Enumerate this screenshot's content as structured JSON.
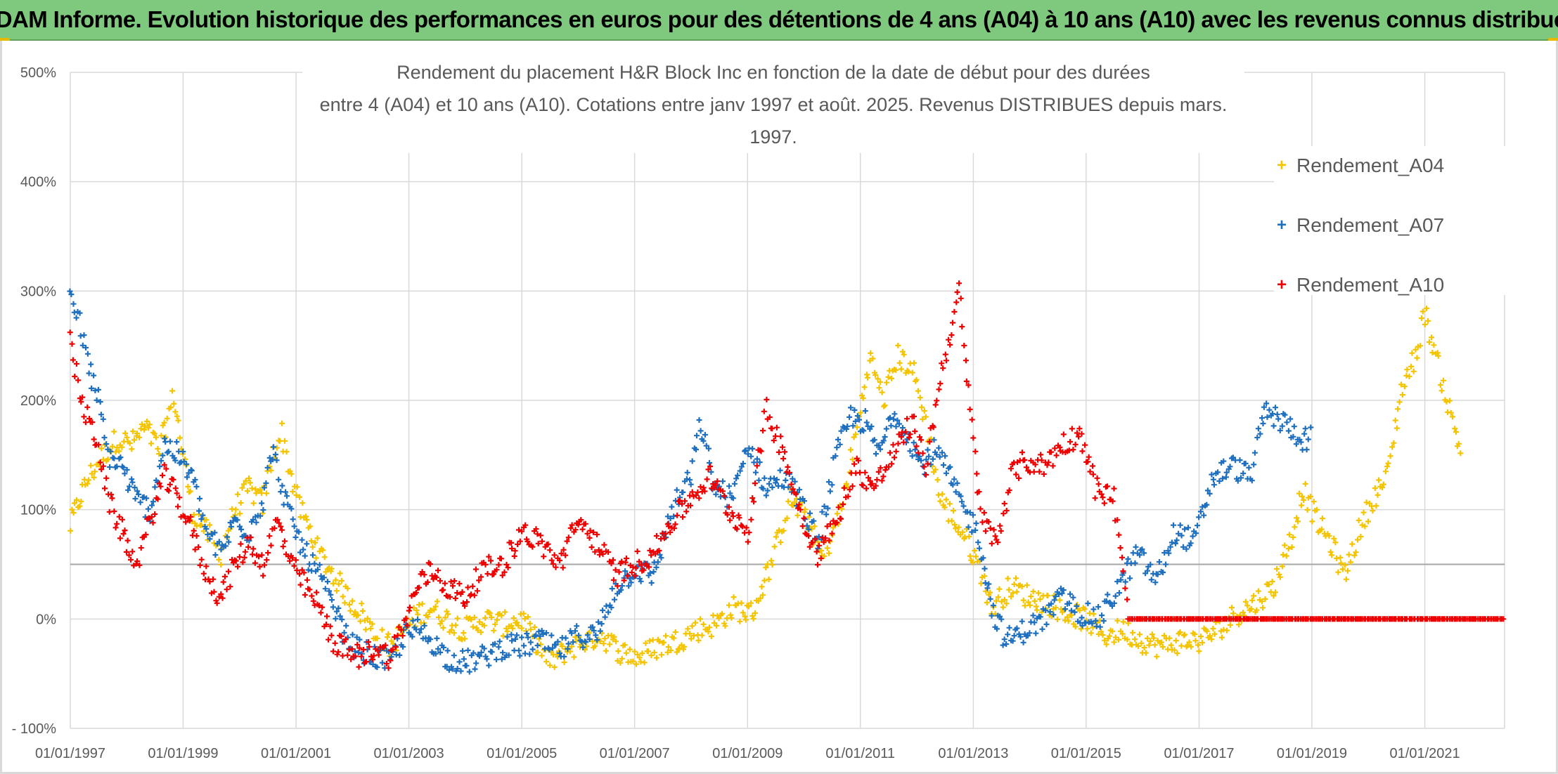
{
  "banner": {
    "title": "ADAM Informe. Evolution historique des performances en euros pour des détentions de 4 ans (A04) à 10 ans (A10) avec les revenus connus distribués"
  },
  "colors": {
    "banner_bg": "#7fc97f",
    "A04": "#f5c400",
    "A07": "#1f6fbf",
    "A10": "#ee0000",
    "grid": "#d9d9d9",
    "reference_line": "#a6a6a6"
  },
  "chart_data": {
    "type": "scatter",
    "title_line1": "Rendement du placement H&R Block Inc en fonction de la date de début pour des durées",
    "title_line2": "entre 4 (A04) et 10 ans (A10). Cotations entre janv 1997 et août. 2025. Revenus DISTRIBUES depuis mars. 1997.",
    "xlabel": "",
    "ylabel": "",
    "xlim": [
      "1997-01-01",
      "2022-06-01"
    ],
    "ylim": [
      -100,
      500
    ],
    "y_unit": "%",
    "y_ticks": [
      "500%",
      "400%",
      "300%",
      "200%",
      "100%",
      "0%",
      "- 100%"
    ],
    "y_tick_values": [
      500,
      400,
      300,
      200,
      100,
      0,
      -100
    ],
    "x_ticks": [
      "01/01/1997",
      "01/01/1999",
      "01/01/2001",
      "01/01/2003",
      "01/01/2005",
      "01/01/2007",
      "01/01/2009",
      "01/01/2011",
      "01/01/2013",
      "01/01/2015",
      "01/01/2017",
      "01/01/2019",
      "01/01/2021"
    ],
    "x_tick_dates": [
      "1997-01-01",
      "1999-01-01",
      "2001-01-01",
      "2003-01-01",
      "2005-01-01",
      "2007-01-01",
      "2009-01-01",
      "2011-01-01",
      "2013-01-01",
      "2015-01-01",
      "2017-01-01",
      "2019-01-01",
      "2021-01-01"
    ],
    "reference_line_y": 50,
    "grid": true,
    "legend_position": "right",
    "marker": "+",
    "series": [
      {
        "name": "Rendement_A04",
        "color": "#f5c400",
        "points": [
          [
            "1997-01-01",
            85
          ],
          [
            "1997-03-01",
            110
          ],
          [
            "1997-05-01",
            130
          ],
          [
            "1997-08-01",
            150
          ],
          [
            "1997-11-01",
            165
          ],
          [
            "1998-02-01",
            160
          ],
          [
            "1998-05-01",
            175
          ],
          [
            "1998-08-01",
            155
          ],
          [
            "1998-11-01",
            205
          ],
          [
            "1999-01-01",
            150
          ],
          [
            "1999-03-01",
            100
          ],
          [
            "1999-06-01",
            80
          ],
          [
            "1999-09-01",
            60
          ],
          [
            "1999-12-01",
            100
          ],
          [
            "2000-03-01",
            120
          ],
          [
            "2000-06-01",
            105
          ],
          [
            "2000-08-01",
            150
          ],
          [
            "2000-10-01",
            170
          ],
          [
            "2000-12-01",
            130
          ],
          [
            "2001-02-01",
            100
          ],
          [
            "2001-04-01",
            80
          ],
          [
            "2001-06-01",
            60
          ],
          [
            "2001-09-01",
            40
          ],
          [
            "2001-12-01",
            20
          ],
          [
            "2002-03-01",
            5
          ],
          [
            "2002-06-01",
            -15
          ],
          [
            "2002-09-01",
            -25
          ],
          [
            "2002-12-01",
            -10
          ],
          [
            "2003-03-01",
            5
          ],
          [
            "2003-06-01",
            10
          ],
          [
            "2003-09-01",
            0
          ],
          [
            "2004-01-01",
            -10
          ],
          [
            "2004-05-01",
            0
          ],
          [
            "2004-09-01",
            -5
          ],
          [
            "2005-01-01",
            0
          ],
          [
            "2005-04-01",
            -20
          ],
          [
            "2005-07-01",
            -40
          ],
          [
            "2005-10-01",
            -30
          ],
          [
            "2006-02-01",
            -20
          ],
          [
            "2006-06-01",
            -15
          ],
          [
            "2006-10-01",
            -30
          ],
          [
            "2007-02-01",
            -35
          ],
          [
            "2007-06-01",
            -25
          ],
          [
            "2007-10-01",
            -20
          ],
          [
            "2008-02-01",
            -10
          ],
          [
            "2008-06-01",
            -5
          ],
          [
            "2008-10-01",
            10
          ],
          [
            "2009-02-01",
            5
          ],
          [
            "2009-06-01",
            50
          ],
          [
            "2009-10-01",
            110
          ],
          [
            "2010-02-01",
            90
          ],
          [
            "2010-05-01",
            55
          ],
          [
            "2010-09-01",
            100
          ],
          [
            "2011-01-01",
            190
          ],
          [
            "2011-03-01",
            240
          ],
          [
            "2011-06-01",
            200
          ],
          [
            "2011-09-01",
            240
          ],
          [
            "2011-12-01",
            230
          ],
          [
            "2012-03-01",
            180
          ],
          [
            "2012-06-01",
            110
          ],
          [
            "2012-09-01",
            90
          ],
          [
            "2012-12-01",
            70
          ],
          [
            "2013-03-01",
            40
          ],
          [
            "2013-05-01",
            10
          ],
          [
            "2013-09-01",
            30
          ],
          [
            "2014-01-01",
            20
          ],
          [
            "2014-05-01",
            15
          ],
          [
            "2014-09-01",
            5
          ],
          [
            "2015-01-01",
            0
          ],
          [
            "2015-05-01",
            -15
          ],
          [
            "2015-09-01",
            -10
          ],
          [
            "2016-01-01",
            -20
          ],
          [
            "2016-05-01",
            -25
          ],
          [
            "2016-09-01",
            -20
          ],
          [
            "2017-01-01",
            -20
          ],
          [
            "2017-05-01",
            -10
          ],
          [
            "2017-09-01",
            5
          ],
          [
            "2018-01-01",
            15
          ],
          [
            "2018-05-01",
            30
          ],
          [
            "2018-09-01",
            80
          ],
          [
            "2018-11-01",
            120
          ],
          [
            "2019-02-01",
            90
          ],
          [
            "2019-05-01",
            70
          ],
          [
            "2019-08-01",
            40
          ],
          [
            "2019-11-01",
            80
          ],
          [
            "2020-02-01",
            110
          ],
          [
            "2020-05-01",
            130
          ],
          [
            "2020-08-01",
            210
          ],
          [
            "2020-11-01",
            240
          ],
          [
            "2021-01-01",
            280
          ],
          [
            "2021-04-01",
            230
          ],
          [
            "2021-07-01",
            180
          ],
          [
            "2021-09-01",
            150
          ]
        ]
      },
      {
        "name": "Rendement_A07",
        "color": "#1f6fbf",
        "points": [
          [
            "1997-01-01",
            300
          ],
          [
            "1997-03-01",
            270
          ],
          [
            "1997-05-01",
            230
          ],
          [
            "1997-07-01",
            200
          ],
          [
            "1997-09-01",
            150
          ],
          [
            "1997-12-01",
            140
          ],
          [
            "1998-03-01",
            110
          ],
          [
            "1998-06-01",
            100
          ],
          [
            "1998-09-01",
            160
          ],
          [
            "1998-12-01",
            150
          ],
          [
            "1999-03-01",
            130
          ],
          [
            "1999-06-01",
            80
          ],
          [
            "1999-09-01",
            60
          ],
          [
            "1999-12-01",
            90
          ],
          [
            "2000-03-01",
            80
          ],
          [
            "2000-06-01",
            110
          ],
          [
            "2000-08-01",
            155
          ],
          [
            "2000-10-01",
            120
          ],
          [
            "2000-12-01",
            90
          ],
          [
            "2001-03-01",
            60
          ],
          [
            "2001-06-01",
            40
          ],
          [
            "2001-09-01",
            10
          ],
          [
            "2001-12-01",
            -20
          ],
          [
            "2002-03-01",
            -30
          ],
          [
            "2002-06-01",
            -35
          ],
          [
            "2002-09-01",
            -40
          ],
          [
            "2002-12-01",
            -15
          ],
          [
            "2003-03-01",
            -10
          ],
          [
            "2003-06-01",
            -20
          ],
          [
            "2003-09-01",
            -35
          ],
          [
            "2004-01-01",
            -40
          ],
          [
            "2004-05-01",
            -35
          ],
          [
            "2004-09-01",
            -25
          ],
          [
            "2005-01-01",
            -25
          ],
          [
            "2005-05-01",
            -20
          ],
          [
            "2005-09-01",
            -30
          ],
          [
            "2006-01-01",
            -15
          ],
          [
            "2006-05-01",
            -15
          ],
          [
            "2006-09-01",
            30
          ],
          [
            "2007-01-01",
            45
          ],
          [
            "2007-05-01",
            40
          ],
          [
            "2007-09-01",
            100
          ],
          [
            "2008-01-01",
            130
          ],
          [
            "2008-03-01",
            180
          ],
          [
            "2008-06-01",
            120
          ],
          [
            "2008-10-01",
            110
          ],
          [
            "2009-01-01",
            160
          ],
          [
            "2009-05-01",
            120
          ],
          [
            "2009-09-01",
            130
          ],
          [
            "2009-12-01",
            110
          ],
          [
            "2010-04-01",
            70
          ],
          [
            "2010-08-01",
            150
          ],
          [
            "2010-11-01",
            185
          ],
          [
            "2011-02-01",
            180
          ],
          [
            "2011-05-01",
            150
          ],
          [
            "2011-08-01",
            190
          ],
          [
            "2011-11-01",
            170
          ],
          [
            "2012-02-01",
            140
          ],
          [
            "2012-05-01",
            155
          ],
          [
            "2012-08-01",
            130
          ],
          [
            "2012-11-01",
            100
          ],
          [
            "2013-02-01",
            80
          ],
          [
            "2013-05-01",
            10
          ],
          [
            "2013-08-01",
            -20
          ],
          [
            "2013-12-01",
            -10
          ],
          [
            "2014-04-01",
            0
          ],
          [
            "2014-08-01",
            20
          ],
          [
            "2014-12-01",
            5
          ],
          [
            "2015-04-01",
            0
          ],
          [
            "2015-08-01",
            30
          ],
          [
            "2015-12-01",
            60
          ],
          [
            "2016-04-01",
            35
          ],
          [
            "2016-08-01",
            80
          ],
          [
            "2016-12-01",
            70
          ],
          [
            "2017-04-01",
            130
          ],
          [
            "2017-08-01",
            140
          ],
          [
            "2017-12-01",
            130
          ],
          [
            "2018-03-01",
            190
          ],
          [
            "2018-07-01",
            180
          ],
          [
            "2018-11-01",
            165
          ],
          [
            "2019-01-01",
            165
          ]
        ]
      },
      {
        "name": "Rendement_A10",
        "color": "#ee0000",
        "points": [
          [
            "1997-01-01",
            255
          ],
          [
            "1997-02-01",
            230
          ],
          [
            "1997-04-01",
            190
          ],
          [
            "1997-07-01",
            160
          ],
          [
            "1997-09-01",
            110
          ],
          [
            "1997-12-01",
            80
          ],
          [
            "1998-03-01",
            50
          ],
          [
            "1998-06-01",
            90
          ],
          [
            "1998-09-01",
            130
          ],
          [
            "1998-12-01",
            110
          ],
          [
            "1999-03-01",
            80
          ],
          [
            "1999-06-01",
            40
          ],
          [
            "1999-09-01",
            20
          ],
          [
            "1999-12-01",
            50
          ],
          [
            "2000-03-01",
            70
          ],
          [
            "2000-06-01",
            50
          ],
          [
            "2000-09-01",
            90
          ],
          [
            "2000-12-01",
            50
          ],
          [
            "2001-03-01",
            30
          ],
          [
            "2001-06-01",
            10
          ],
          [
            "2001-09-01",
            -20
          ],
          [
            "2001-12-01",
            -30
          ],
          [
            "2002-03-01",
            -35
          ],
          [
            "2002-06-01",
            -25
          ],
          [
            "2002-09-01",
            -35
          ],
          [
            "2002-12-01",
            -5
          ],
          [
            "2003-03-01",
            30
          ],
          [
            "2003-06-01",
            45
          ],
          [
            "2003-09-01",
            30
          ],
          [
            "2004-01-01",
            20
          ],
          [
            "2004-05-01",
            45
          ],
          [
            "2004-09-01",
            50
          ],
          [
            "2005-01-01",
            80
          ],
          [
            "2005-05-01",
            70
          ],
          [
            "2005-09-01",
            50
          ],
          [
            "2006-01-01",
            90
          ],
          [
            "2006-05-01",
            70
          ],
          [
            "2006-09-01",
            40
          ],
          [
            "2007-01-01",
            50
          ],
          [
            "2007-05-01",
            60
          ],
          [
            "2007-09-01",
            90
          ],
          [
            "2008-01-01",
            110
          ],
          [
            "2008-05-01",
            130
          ],
          [
            "2008-09-01",
            100
          ],
          [
            "2009-01-01",
            80
          ],
          [
            "2009-05-01",
            190
          ],
          [
            "2009-09-01",
            150
          ],
          [
            "2009-12-01",
            100
          ],
          [
            "2010-04-01",
            60
          ],
          [
            "2010-08-01",
            90
          ],
          [
            "2010-12-01",
            140
          ],
          [
            "2011-04-01",
            120
          ],
          [
            "2011-08-01",
            150
          ],
          [
            "2011-12-01",
            180
          ],
          [
            "2012-03-01",
            140
          ],
          [
            "2012-06-01",
            220
          ],
          [
            "2012-08-01",
            260
          ],
          [
            "2012-10-01",
            300
          ],
          [
            "2012-11-01",
            250
          ],
          [
            "2013-01-01",
            160
          ],
          [
            "2013-03-01",
            90
          ],
          [
            "2013-06-01",
            70
          ],
          [
            "2013-09-01",
            130
          ],
          [
            "2013-12-01",
            145
          ],
          [
            "2014-04-01",
            140
          ],
          [
            "2014-08-01",
            160
          ],
          [
            "2014-12-01",
            170
          ],
          [
            "2015-03-01",
            120
          ],
          [
            "2015-07-01",
            110
          ],
          [
            "2015-10-01",
            0
          ],
          [
            "2016-06-01",
            0
          ],
          [
            "2017-06-01",
            0
          ],
          [
            "2018-06-01",
            0
          ],
          [
            "2019-06-01",
            0
          ],
          [
            "2020-06-01",
            0
          ],
          [
            "2021-06-01",
            0
          ],
          [
            "2022-06-01",
            0
          ]
        ]
      }
    ]
  }
}
